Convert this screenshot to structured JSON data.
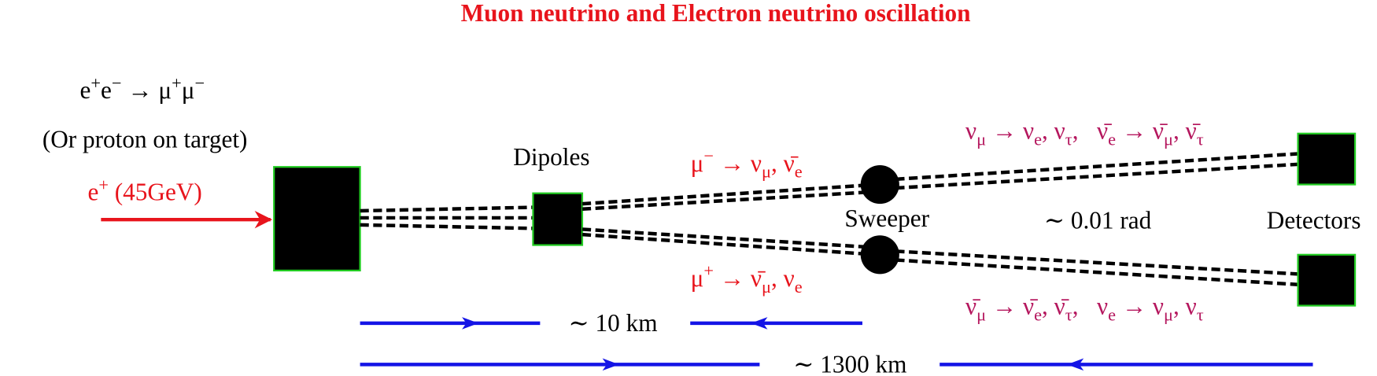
{
  "title": "Muon neutrino and Electron neutrino oscillation",
  "process": [
    "e",
    "+",
    "e",
    "−",
    " → μ",
    "+",
    "μ",
    "−"
  ],
  "alternative": "(Or proton on target)",
  "beam": [
    "e",
    "+",
    " (45GeV)"
  ],
  "dipoles": "Dipoles",
  "decay_minus": [
    "μ",
    "−",
    " → ν",
    "μ",
    ", ν̄",
    "e"
  ],
  "decay_plus": [
    "μ",
    "+",
    " → ν̄",
    "μ",
    ", ν",
    "e"
  ],
  "sweeper": "Sweeper",
  "angle": "∼ 0.01 rad",
  "detectors": "Detectors",
  "oscillation_top": [
    "ν",
    "μ",
    " → ν",
    "e",
    ", ν",
    "τ",
    ",   ν̄",
    "e",
    " → ν̄",
    "μ",
    ", ν̄",
    "τ"
  ],
  "oscillation_bottom": [
    "ν̄",
    "μ",
    " → ν̄",
    "e",
    ", ν̄",
    "τ",
    ",   ν",
    "e",
    " → ν",
    "μ",
    ", ν",
    "τ"
  ],
  "short_distance": "∼ 10 km",
  "long_distance": "∼ 1300 km"
}
